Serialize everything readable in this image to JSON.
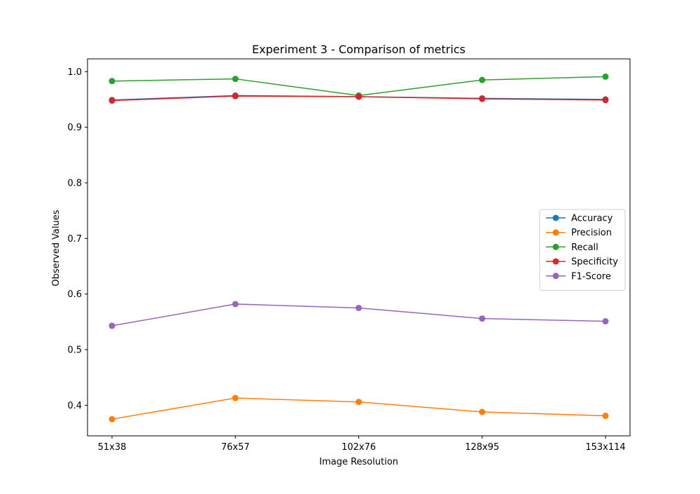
{
  "chart_data": {
    "type": "line",
    "title": "Experiment 3 - Comparison of metrics",
    "xlabel": "Image Resolution",
    "ylabel": "Observed Values",
    "categories": [
      "51x38",
      "76x57",
      "102x76",
      "128x95",
      "153x114"
    ],
    "ylim": [
      0.345,
      1.023
    ],
    "yticks": [
      0.4,
      0.5,
      0.6,
      0.7,
      0.8,
      0.9,
      1.0
    ],
    "ytick_labels": [
      "0.4",
      "0.5",
      "0.6",
      "0.7",
      "0.8",
      "0.9",
      "1.0"
    ],
    "grid": false,
    "legend_position": "center-right",
    "series": [
      {
        "name": "Accuracy",
        "color": "#1f77b4",
        "values": [
          0.949,
          0.957,
          0.955,
          0.952,
          0.95
        ]
      },
      {
        "name": "Precision",
        "color": "#ff7f0e",
        "values": [
          0.375,
          0.413,
          0.406,
          0.388,
          0.381
        ]
      },
      {
        "name": "Recall",
        "color": "#2ca02c",
        "values": [
          0.983,
          0.987,
          0.957,
          0.985,
          0.991
        ]
      },
      {
        "name": "Specificity",
        "color": "#d62728",
        "values": [
          0.948,
          0.956,
          0.955,
          0.951,
          0.949
        ]
      },
      {
        "name": "F1-Score",
        "color": "#9467bd",
        "values": [
          0.543,
          0.582,
          0.575,
          0.556,
          0.551
        ]
      }
    ]
  }
}
